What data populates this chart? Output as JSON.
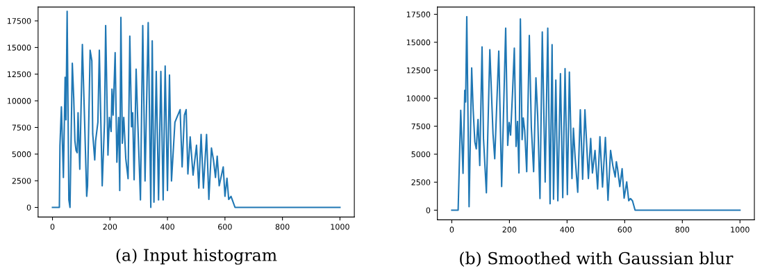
{
  "chart_data": [
    {
      "type": "line",
      "annotations": [
        "(a) Input histogram"
      ],
      "xlim": [
        -50,
        1050
      ],
      "ylim": [
        -900,
        18800
      ],
      "xticks": [
        0,
        200,
        400,
        600,
        800,
        1000
      ],
      "yticks": [
        0,
        2500,
        5000,
        7500,
        10000,
        12500,
        15000,
        17500
      ],
      "grid": false,
      "series": [
        {
          "color": "#1f77b4",
          "x": [
            0,
            24,
            26,
            31,
            38,
            44,
            47,
            51,
            57,
            61,
            69,
            74,
            78,
            82,
            86,
            89,
            95,
            104,
            112,
            119,
            122,
            131,
            137,
            140,
            147,
            150,
            158,
            163,
            173,
            181,
            185,
            193,
            198,
            204,
            207,
            211,
            218,
            224,
            230,
            234,
            238,
            243,
            248,
            255,
            263,
            269,
            275,
            279,
            284,
            291,
            297,
            306,
            314,
            322,
            333,
            342,
            347,
            353,
            361,
            369,
            377,
            385,
            392,
            400,
            407,
            414,
            426,
            444,
            451,
            459,
            465,
            471,
            479,
            489,
            501,
            509,
            517,
            525,
            536,
            544,
            553,
            560,
            567,
            573,
            580,
            594,
            600,
            607,
            613,
            621,
            627,
            635,
            1000
          ],
          "values": [
            0,
            0,
            5790,
            9440,
            2810,
            12200,
            8220,
            18390,
            710,
            0,
            13530,
            10210,
            6230,
            5350,
            5130,
            8880,
            3580,
            15290,
            7890,
            1040,
            2030,
            14740,
            13750,
            6900,
            4460,
            6230,
            8000,
            14740,
            2030,
            8000,
            17060,
            4910,
            8440,
            7120,
            11090,
            8660,
            14520,
            4240,
            8440,
            1590,
            17830,
            6010,
            8440,
            4570,
            2700,
            16070,
            7560,
            8880,
            2590,
            12970,
            7780,
            710,
            17060,
            2480,
            17330,
            0,
            15620,
            490,
            12750,
            710,
            12750,
            710,
            13260,
            1590,
            12420,
            2480,
            8000,
            9170,
            3800,
            8660,
            9170,
            3140,
            6610,
            3030,
            5830,
            1810,
            6850,
            1810,
            6850,
            750,
            5570,
            4460,
            2810,
            4800,
            2030,
            3800,
            1040,
            2740,
            750,
            1040,
            600,
            0,
            0
          ]
        }
      ]
    },
    {
      "type": "line",
      "annotations": [
        "(b) Smoothed with Gaussian blur"
      ],
      "xlim": [
        -50,
        1050
      ],
      "ylim": [
        -860,
        18150
      ],
      "xticks": [
        0,
        200,
        400,
        600,
        800,
        1000
      ],
      "yticks": [
        0,
        2500,
        5000,
        7500,
        10000,
        12500,
        15000,
        17500
      ],
      "grid": false,
      "series": [
        {
          "color": "#1f77b4",
          "x": [
            0,
            22,
            31,
            39,
            45,
            48,
            52,
            60,
            69,
            74,
            80,
            85,
            91,
            97,
            105,
            110,
            120,
            132,
            143,
            149,
            163,
            173,
            187,
            194,
            199,
            204,
            211,
            217,
            223,
            228,
            233,
            238,
            244,
            248,
            253,
            260,
            269,
            276,
            284,
            292,
            298,
            306,
            314,
            324,
            333,
            341,
            348,
            353,
            361,
            368,
            377,
            385,
            393,
            401,
            408,
            417,
            422,
            428,
            437,
            446,
            454,
            462,
            474,
            482,
            488,
            497,
            506,
            514,
            523,
            533,
            542,
            551,
            559,
            567,
            571,
            575,
            583,
            591,
            598,
            607,
            614,
            620,
            627,
            636,
            1000
          ],
          "values": [
            0,
            0,
            8920,
            3290,
            10700,
            9670,
            17280,
            310,
            12700,
            9060,
            6090,
            5480,
            8100,
            3990,
            14580,
            6400,
            1550,
            14340,
            6810,
            4600,
            14210,
            2110,
            16260,
            5790,
            7830,
            6710,
            10630,
            14480,
            5690,
            7930,
            3330,
            17080,
            6300,
            8240,
            7120,
            3440,
            15600,
            7420,
            3440,
            11820,
            8450,
            1040,
            15910,
            2520,
            16260,
            570,
            14790,
            980,
            11620,
            840,
            12190,
            1120,
            12640,
            1390,
            12330,
            2820,
            7320,
            4720,
            1600,
            8960,
            2760,
            8960,
            2820,
            6400,
            3330,
            5340,
            1900,
            6560,
            2070,
            6500,
            880,
            5340,
            3950,
            2970,
            4330,
            3740,
            2110,
            3700,
            1080,
            2520,
            840,
            1040,
            840,
            0,
            0
          ]
        }
      ]
    }
  ]
}
